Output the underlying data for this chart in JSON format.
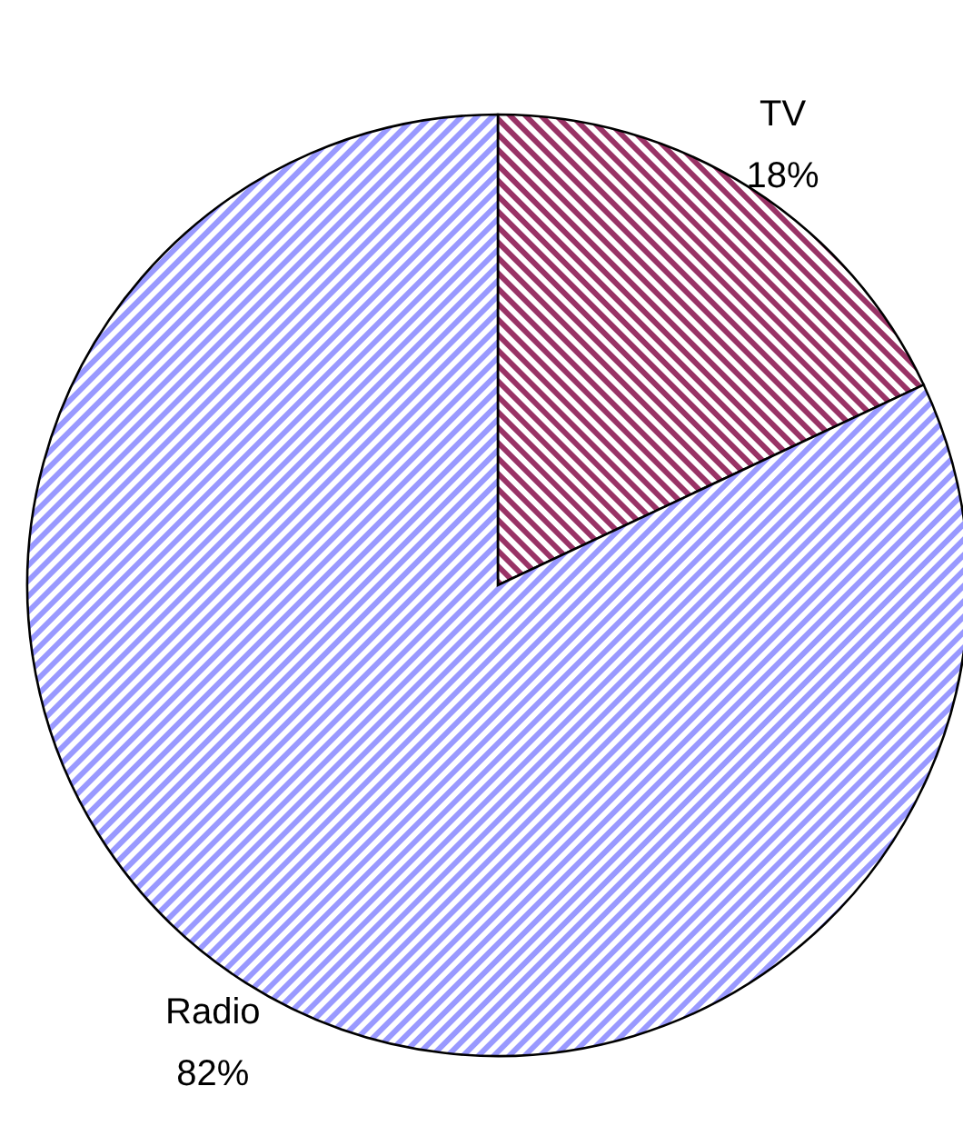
{
  "chart_data": {
    "type": "pie",
    "categories": [
      "TV",
      "Radio"
    ],
    "values": [
      18,
      82
    ],
    "colors": [
      "#993366",
      "#9999ff"
    ],
    "value_labels": [
      "18%",
      "82%"
    ]
  }
}
